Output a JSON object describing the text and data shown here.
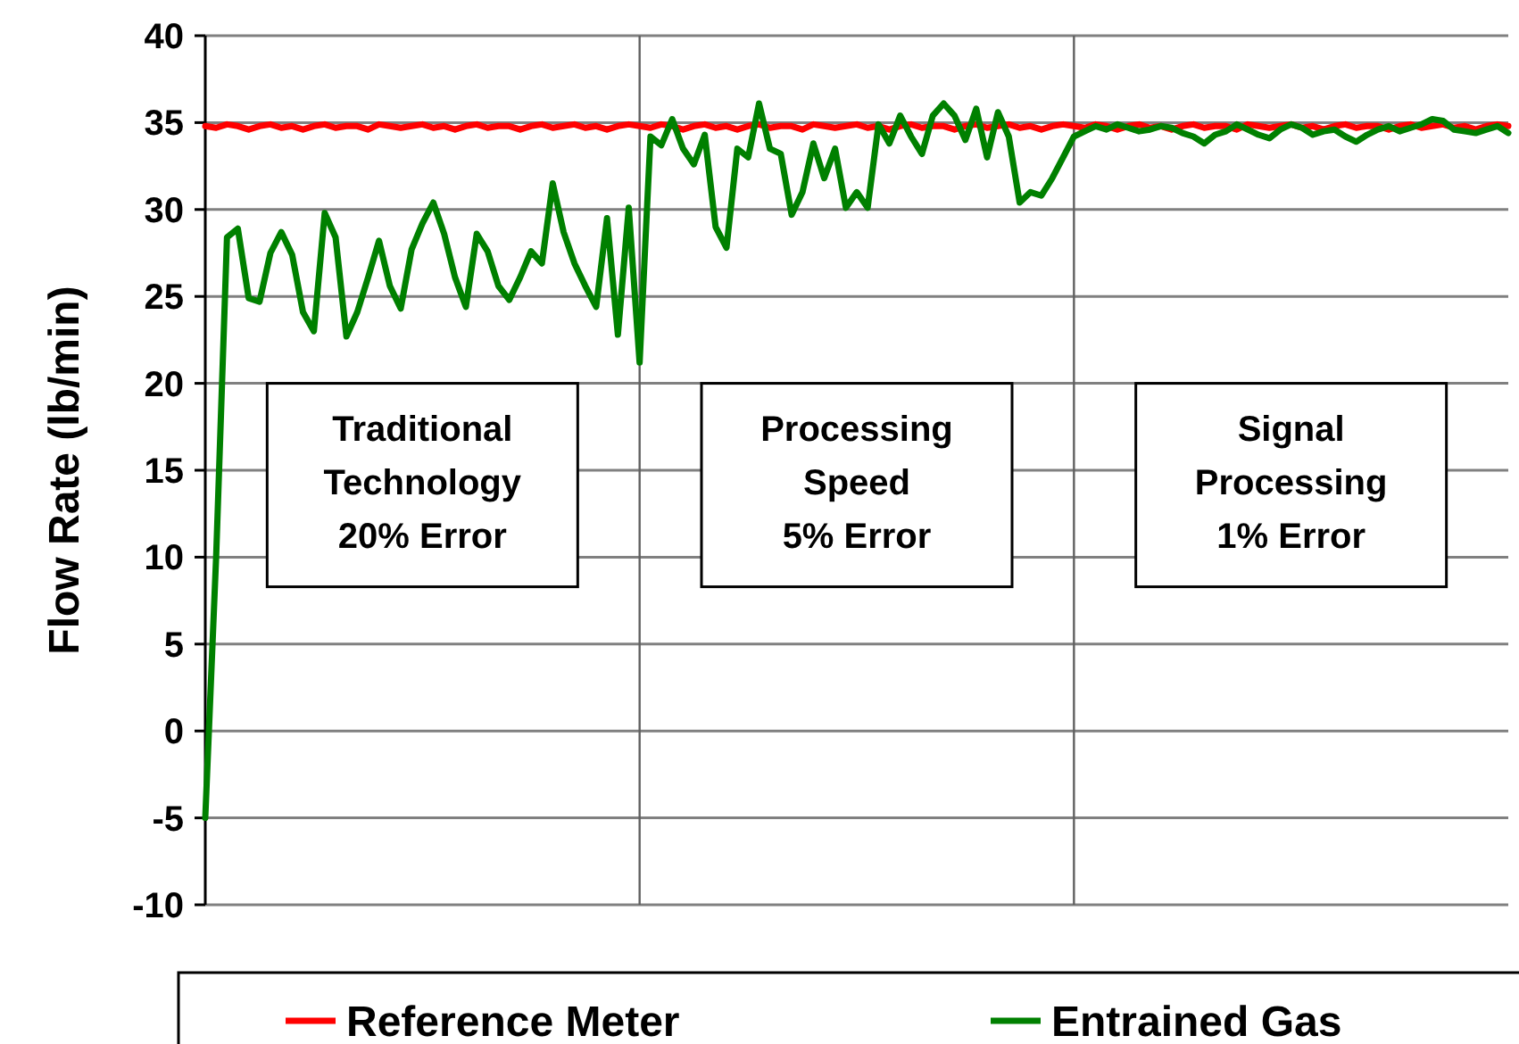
{
  "chart_data": {
    "type": "line",
    "ylabel": "Flow Rate (lb/min)",
    "categories": [
      null,
      null,
      null,
      null,
      null,
      null,
      null,
      null,
      null,
      null,
      null,
      null,
      null,
      null,
      null,
      null,
      null,
      null,
      null,
      null,
      null,
      null,
      null,
      null,
      null,
      null,
      null,
      null,
      null,
      null,
      null,
      null,
      null,
      null,
      null,
      null,
      null,
      null,
      null,
      null,
      null,
      null,
      null,
      null,
      null,
      null,
      null,
      null,
      null,
      null,
      null,
      null,
      null,
      null,
      null,
      null,
      null,
      null,
      null,
      null,
      null,
      null,
      null,
      null,
      null,
      null,
      null,
      null,
      null,
      null,
      null,
      null,
      null,
      null,
      null,
      null,
      null,
      null,
      null,
      null,
      null,
      null,
      null,
      null,
      null,
      null,
      null,
      null,
      null,
      null,
      null,
      null,
      null,
      null,
      null,
      null,
      null,
      null,
      null,
      null,
      null,
      null,
      null,
      null,
      null,
      null,
      null,
      null,
      null,
      null,
      null,
      null,
      null,
      null,
      null,
      null,
      null,
      null,
      null,
      null,
      null
    ],
    "series": [
      {
        "name": "Reference Meter",
        "color": "#ff0000",
        "values": [
          34.8,
          34.7,
          34.9,
          34.8,
          34.6,
          34.8,
          34.9,
          34.7,
          34.8,
          34.6,
          34.8,
          34.9,
          34.7,
          34.8,
          34.8,
          34.6,
          34.9,
          34.8,
          34.7,
          34.8,
          34.9,
          34.7,
          34.8,
          34.6,
          34.8,
          34.9,
          34.7,
          34.8,
          34.8,
          34.6,
          34.8,
          34.9,
          34.7,
          34.8,
          34.9,
          34.7,
          34.8,
          34.6,
          34.8,
          34.9,
          34.8,
          34.7,
          34.9,
          34.8,
          34.6,
          34.8,
          34.9,
          34.7,
          34.8,
          34.6,
          34.8,
          34.9,
          34.7,
          34.8,
          34.8,
          34.6,
          34.9,
          34.8,
          34.7,
          34.8,
          34.9,
          34.7,
          34.8,
          34.6,
          34.8,
          34.9,
          34.7,
          34.8,
          34.8,
          34.6,
          34.8,
          34.9,
          34.7,
          34.8,
          34.9,
          34.7,
          34.8,
          34.6,
          34.8,
          34.9,
          34.8,
          34.7,
          34.9,
          34.8,
          34.6,
          34.8,
          34.9,
          34.7,
          34.8,
          34.6,
          34.8,
          34.9,
          34.7,
          34.8,
          34.8,
          34.6,
          34.9,
          34.8,
          34.7,
          34.8,
          34.9,
          34.7,
          34.8,
          34.6,
          34.8,
          34.9,
          34.7,
          34.8,
          34.8,
          34.6,
          34.8,
          34.9,
          34.7,
          34.8,
          34.9,
          34.7,
          34.8,
          34.6,
          34.8,
          34.9,
          34.8
        ]
      },
      {
        "name": "Entrained Gas",
        "color": "#008000",
        "values": [
          -5,
          10,
          28.4,
          28.9,
          24.9,
          24.7,
          27.5,
          28.7,
          27.4,
          24.1,
          23,
          29.8,
          28.4,
          22.7,
          24.1,
          26.1,
          28.2,
          25.6,
          24.3,
          27.7,
          29.2,
          30.4,
          28.6,
          26.1,
          24.4,
          28.6,
          27.6,
          25.6,
          24.8,
          26.1,
          27.6,
          26.9,
          31.5,
          28.7,
          26.9,
          25.6,
          24.4,
          29.5,
          22.8,
          30.1,
          21.2,
          34.2,
          33.7,
          35.2,
          33.5,
          32.6,
          34.3,
          29,
          27.8,
          33.5,
          33,
          36.1,
          33.5,
          33.2,
          29.7,
          31,
          33.8,
          31.8,
          33.5,
          30.1,
          31,
          30.1,
          34.9,
          33.8,
          35.4,
          34.2,
          33.2,
          35.4,
          36.1,
          35.4,
          34,
          35.8,
          33,
          35.6,
          34.2,
          30.4,
          31,
          30.8,
          31.8,
          33,
          34.2,
          34.5,
          34.8,
          34.6,
          34.9,
          34.7,
          34.5,
          34.6,
          34.8,
          34.7,
          34.4,
          34.2,
          33.8,
          34.3,
          34.5,
          34.9,
          34.6,
          34.3,
          34.1,
          34.6,
          34.9,
          34.7,
          34.3,
          34.5,
          34.6,
          34.2,
          33.9,
          34.3,
          34.6,
          34.8,
          34.5,
          34.7,
          34.9,
          35.2,
          35.1,
          34.6,
          34.5,
          34.4,
          34.6,
          34.8,
          34.4
        ]
      }
    ],
    "ylim": [
      -10,
      40
    ],
    "yticks": [
      -10,
      -5,
      0,
      5,
      10,
      15,
      20,
      25,
      30,
      35,
      40
    ],
    "grid": true,
    "legend": "bottom",
    "line_style": "solid",
    "marker": "none",
    "annotations": [
      "Traditional\nTechnology\n20% Error",
      "Processing\nSpeed\n5% Error",
      "Signal\nProcessing\n1% Error"
    ]
  }
}
